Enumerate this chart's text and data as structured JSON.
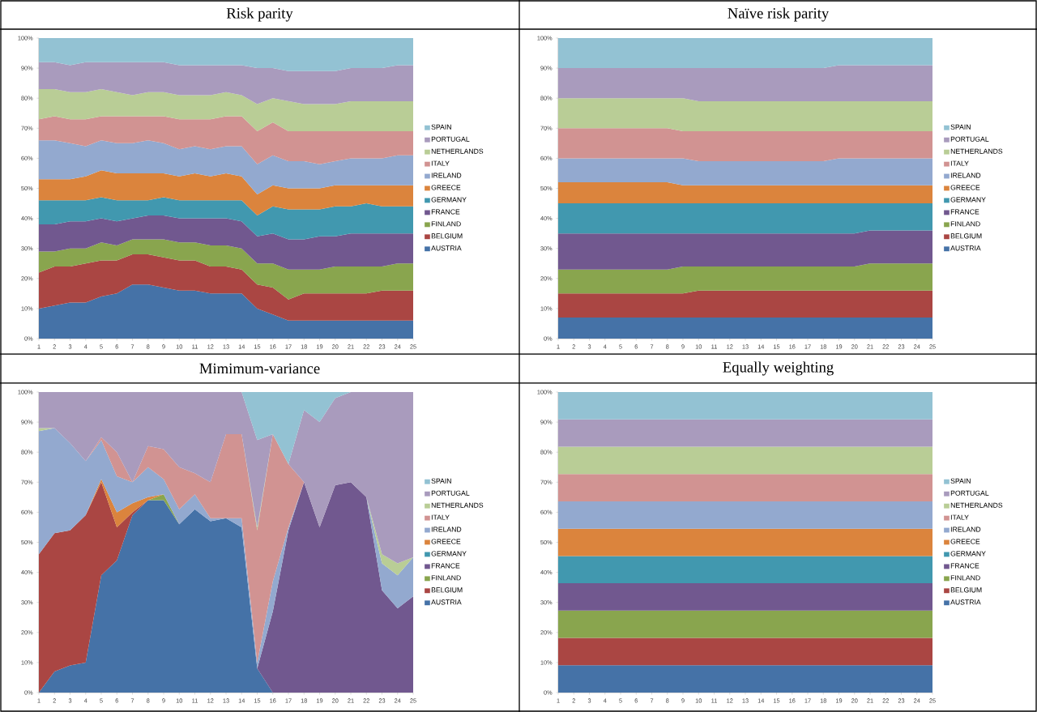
{
  "chart_data": [
    {
      "type": "area",
      "title": "Risk parity",
      "stacked": true,
      "legend": "right",
      "ylim": [
        0,
        100
      ],
      "yticks": [
        {
          "value": 0,
          "label": "0%"
        },
        {
          "value": 10,
          "label": "10%"
        },
        {
          "value": 20,
          "label": "20%"
        },
        {
          "value": 30,
          "label": "30%"
        },
        {
          "value": 40,
          "label": "40%"
        },
        {
          "value": 50,
          "label": "50%"
        },
        {
          "value": 60,
          "label": "60%"
        },
        {
          "value": 70,
          "label": "70%"
        },
        {
          "value": 80,
          "label": "80%"
        },
        {
          "value": 90,
          "label": "90%"
        },
        {
          "value": 100,
          "label": "100%"
        }
      ],
      "categories": [
        "1",
        "2",
        "3",
        "4",
        "5",
        "6",
        "7",
        "8",
        "9",
        "10",
        "11",
        "12",
        "13",
        "14",
        "15",
        "16",
        "17",
        "18",
        "19",
        "20",
        "21",
        "22",
        "23",
        "24",
        "25"
      ],
      "series": [
        {
          "name": "AUSTRIA",
          "color": "#4572a7",
          "values": [
            10,
            11,
            12,
            12,
            14,
            15,
            18,
            18,
            17,
            16,
            16,
            15,
            15,
            15,
            10,
            8,
            6,
            6,
            6,
            6,
            6,
            6,
            6,
            6,
            6
          ]
        },
        {
          "name": "BELGIUM",
          "color": "#aa4643",
          "values": [
            12,
            13,
            12,
            13,
            12,
            11,
            10,
            10,
            10,
            10,
            10,
            9,
            9,
            8,
            8,
            9,
            7,
            9,
            9,
            9,
            9,
            9,
            10,
            10,
            10
          ]
        },
        {
          "name": "FINLAND",
          "color": "#89a54e",
          "values": [
            7,
            5,
            6,
            5,
            6,
            5,
            5,
            5,
            6,
            6,
            6,
            7,
            7,
            7,
            7,
            8,
            10,
            8,
            8,
            9,
            9,
            9,
            8,
            9,
            9
          ]
        },
        {
          "name": "FRANCE",
          "color": "#71588f",
          "values": [
            9,
            9,
            9,
            9,
            8,
            8,
            7,
            8,
            8,
            8,
            8,
            9,
            9,
            9,
            9,
            10,
            10,
            10,
            11,
            10,
            11,
            11,
            11,
            10,
            10
          ]
        },
        {
          "name": "GERMANY",
          "color": "#4198af",
          "values": [
            8,
            8,
            7,
            7,
            7,
            7,
            6,
            5,
            6,
            6,
            6,
            6,
            6,
            7,
            7,
            9,
            10,
            10,
            9,
            10,
            9,
            10,
            9,
            9,
            9
          ]
        },
        {
          "name": "GREECE",
          "color": "#db843d",
          "values": [
            7,
            7,
            7,
            8,
            9,
            9,
            9,
            9,
            8,
            8,
            9,
            8,
            9,
            8,
            7,
            7,
            7,
            7,
            7,
            7,
            7,
            6,
            7,
            7,
            7
          ]
        },
        {
          "name": "IRELAND",
          "color": "#93a9cf",
          "values": [
            13,
            13,
            12,
            10,
            10,
            10,
            10,
            11,
            10,
            9,
            9,
            9,
            9,
            10,
            10,
            10,
            9,
            9,
            8,
            8,
            9,
            9,
            9,
            10,
            10
          ]
        },
        {
          "name": "ITALY",
          "color": "#d19392",
          "values": [
            7,
            8,
            8,
            9,
            8,
            9,
            9,
            8,
            9,
            10,
            9,
            10,
            10,
            10,
            11,
            11,
            10,
            10,
            11,
            10,
            9,
            9,
            9,
            8,
            8
          ]
        },
        {
          "name": "NETHERLANDS",
          "color": "#b9cd96",
          "values": [
            10,
            9,
            9,
            9,
            9,
            8,
            7,
            8,
            8,
            8,
            8,
            8,
            8,
            7,
            9,
            8,
            10,
            9,
            9,
            9,
            10,
            10,
            10,
            10,
            10
          ]
        },
        {
          "name": "PORTUGAL",
          "color": "#a99bbd",
          "values": [
            9,
            9,
            9,
            10,
            9,
            10,
            11,
            10,
            10,
            10,
            10,
            10,
            9,
            10,
            12,
            10,
            10,
            11,
            11,
            11,
            11,
            11,
            11,
            12,
            12
          ]
        },
        {
          "name": "SPAIN",
          "color": "#93c2d3",
          "values": [
            8,
            8,
            9,
            8,
            8,
            8,
            8,
            8,
            8,
            9,
            9,
            9,
            9,
            9,
            10,
            10,
            11,
            11,
            11,
            11,
            10,
            10,
            10,
            9,
            9
          ]
        }
      ]
    },
    {
      "type": "area",
      "title": "Naïve risk parity",
      "stacked": true,
      "legend": "right",
      "ylim": [
        0,
        100
      ],
      "yticks": [
        {
          "value": 0,
          "label": "0%"
        },
        {
          "value": 10,
          "label": "10%"
        },
        {
          "value": 20,
          "label": "20%"
        },
        {
          "value": 30,
          "label": "30%"
        },
        {
          "value": 40,
          "label": "40%"
        },
        {
          "value": 50,
          "label": "50%"
        },
        {
          "value": 60,
          "label": "60%"
        },
        {
          "value": 70,
          "label": "70%"
        },
        {
          "value": 80,
          "label": "80%"
        },
        {
          "value": 90,
          "label": "90%"
        },
        {
          "value": 100,
          "label": "100%"
        }
      ],
      "categories": [
        "1",
        "2",
        "3",
        "4",
        "5",
        "6",
        "7",
        "8",
        "9",
        "10",
        "11",
        "12",
        "13",
        "14",
        "15",
        "16",
        "17",
        "18",
        "19",
        "20",
        "21",
        "22",
        "23",
        "24",
        "25"
      ],
      "series": [
        {
          "name": "AUSTRIA",
          "color": "#4572a7",
          "values": [
            7,
            7,
            7,
            7,
            7,
            7,
            7,
            7,
            7,
            7,
            7,
            7,
            7,
            7,
            7,
            7,
            7,
            7,
            7,
            7,
            7,
            7,
            7,
            7,
            7
          ]
        },
        {
          "name": "BELGIUM",
          "color": "#aa4643",
          "values": [
            8,
            8,
            8,
            8,
            8,
            8,
            8,
            8,
            8,
            9,
            9,
            9,
            9,
            9,
            9,
            9,
            9,
            9,
            9,
            9,
            9,
            9,
            9,
            9,
            9
          ]
        },
        {
          "name": "FINLAND",
          "color": "#89a54e",
          "values": [
            8,
            8,
            8,
            8,
            8,
            8,
            8,
            8,
            9,
            8,
            8,
            8,
            8,
            8,
            8,
            8,
            8,
            8,
            8,
            8,
            9,
            9,
            9,
            9,
            9
          ]
        },
        {
          "name": "FRANCE",
          "color": "#71588f",
          "values": [
            12,
            12,
            12,
            12,
            12,
            12,
            12,
            12,
            11,
            11,
            11,
            11,
            11,
            11,
            11,
            11,
            11,
            11,
            11,
            11,
            11,
            11,
            11,
            11,
            11
          ]
        },
        {
          "name": "GERMANY",
          "color": "#4198af",
          "values": [
            10,
            10,
            10,
            10,
            10,
            10,
            10,
            10,
            10,
            10,
            10,
            10,
            10,
            10,
            10,
            10,
            10,
            10,
            10,
            10,
            9,
            9,
            9,
            9,
            9
          ]
        },
        {
          "name": "GREECE",
          "color": "#db843d",
          "values": [
            7,
            7,
            7,
            7,
            7,
            7,
            7,
            7,
            6,
            6,
            6,
            6,
            6,
            6,
            6,
            6,
            6,
            6,
            6,
            6,
            6,
            6,
            6,
            6,
            6
          ]
        },
        {
          "name": "IRELAND",
          "color": "#93a9cf",
          "values": [
            8,
            8,
            8,
            8,
            8,
            8,
            8,
            8,
            9,
            8,
            8,
            8,
            8,
            8,
            8,
            8,
            8,
            8,
            9,
            9,
            9,
            9,
            9,
            9,
            9
          ]
        },
        {
          "name": "ITALY",
          "color": "#d19392",
          "values": [
            10,
            10,
            10,
            10,
            10,
            10,
            10,
            10,
            9,
            10,
            10,
            10,
            10,
            10,
            10,
            10,
            10,
            10,
            9,
            9,
            9,
            9,
            9,
            9,
            9
          ]
        },
        {
          "name": "NETHERLANDS",
          "color": "#b9cd96",
          "values": [
            10,
            10,
            10,
            10,
            10,
            10,
            10,
            10,
            11,
            10,
            10,
            10,
            10,
            10,
            10,
            10,
            10,
            10,
            10,
            10,
            10,
            10,
            10,
            10,
            10
          ]
        },
        {
          "name": "PORTUGAL",
          "color": "#a99bbd",
          "values": [
            10,
            10,
            10,
            10,
            10,
            10,
            10,
            10,
            10,
            11,
            11,
            11,
            11,
            11,
            11,
            11,
            11,
            11,
            12,
            12,
            12,
            12,
            12,
            12,
            12
          ]
        },
        {
          "name": "SPAIN",
          "color": "#93c2d3",
          "values": [
            10,
            10,
            10,
            10,
            10,
            10,
            10,
            10,
            10,
            10,
            10,
            10,
            10,
            10,
            10,
            10,
            10,
            10,
            9,
            9,
            9,
            9,
            9,
            9,
            9
          ]
        }
      ]
    },
    {
      "type": "area",
      "title": "Mimimum-variance",
      "stacked": true,
      "legend": "right",
      "ylim": [
        0,
        100
      ],
      "yticks": [
        {
          "value": 0,
          "label": "0%"
        },
        {
          "value": 10,
          "label": "10%"
        },
        {
          "value": 20,
          "label": "20%"
        },
        {
          "value": 30,
          "label": "30%"
        },
        {
          "value": 40,
          "label": "40%"
        },
        {
          "value": 50,
          "label": "50%"
        },
        {
          "value": 60,
          "label": "60%"
        },
        {
          "value": 70,
          "label": "70%"
        },
        {
          "value": 80,
          "label": "80%"
        },
        {
          "value": 90,
          "label": "90%"
        },
        {
          "value": 100,
          "label": "100%"
        }
      ],
      "categories": [
        "1",
        "2",
        "3",
        "4",
        "5",
        "6",
        "7",
        "8",
        "9",
        "10",
        "11",
        "12",
        "13",
        "14",
        "15",
        "16",
        "17",
        "18",
        "19",
        "20",
        "21",
        "22",
        "23",
        "24",
        "25"
      ],
      "series": [
        {
          "name": "AUSTRIA",
          "color": "#4572a7",
          "values": [
            0,
            7,
            9,
            10,
            39,
            44,
            59,
            64,
            64,
            56,
            61,
            57,
            58,
            55,
            8,
            0,
            null,
            null,
            null,
            null,
            null,
            null,
            null,
            null,
            null
          ]
        },
        {
          "name": "BELGIUM",
          "color": "#aa4643",
          "values": [
            46,
            46,
            45,
            49,
            31,
            11,
            1,
            0,
            null,
            null,
            null,
            null,
            null,
            null,
            null,
            null,
            null,
            null,
            null,
            null,
            null,
            null,
            null,
            null,
            null
          ]
        },
        {
          "name": "FINLAND",
          "color": "#89a54e",
          "values": [
            null,
            null,
            null,
            null,
            null,
            null,
            null,
            0,
            2,
            0,
            null,
            null,
            null,
            null,
            null,
            null,
            null,
            null,
            null,
            null,
            null,
            null,
            null,
            null,
            null
          ]
        },
        {
          "name": "FRANCE",
          "color": "#71588f",
          "values": [
            null,
            null,
            null,
            null,
            null,
            null,
            null,
            null,
            null,
            null,
            null,
            null,
            null,
            null,
            0,
            27,
            54,
            70,
            55,
            69,
            70,
            65,
            34,
            28,
            32
          ]
        },
        {
          "name": "GERMANY",
          "color": "#4198af",
          "values": [
            null,
            null,
            null,
            null,
            null,
            null,
            null,
            null,
            null,
            null,
            null,
            null,
            null,
            null,
            null,
            null,
            null,
            null,
            null,
            null,
            null,
            null,
            null,
            null,
            null
          ]
        },
        {
          "name": "GREECE",
          "color": "#db843d",
          "values": [
            null,
            null,
            null,
            0,
            1,
            5,
            3,
            1,
            0,
            null,
            null,
            null,
            null,
            null,
            null,
            null,
            null,
            null,
            null,
            null,
            null,
            null,
            null,
            null,
            null
          ]
        },
        {
          "name": "IRELAND",
          "color": "#93a9cf",
          "values": [
            41,
            35,
            29,
            18,
            13,
            12,
            7,
            10,
            5,
            5,
            5,
            1,
            0,
            3,
            2,
            10,
            1,
            0,
            null,
            null,
            null,
            0,
            9,
            11,
            13
          ]
        },
        {
          "name": "ITALY",
          "color": "#d19392",
          "values": [
            null,
            null,
            null,
            0,
            1,
            8,
            0,
            7,
            10,
            14,
            7,
            12,
            28,
            28,
            44,
            49,
            21,
            0,
            null,
            null,
            null,
            null,
            null,
            null,
            null
          ]
        },
        {
          "name": "NETHERLANDS",
          "color": "#b9cd96",
          "values": [
            1,
            0,
            null,
            null,
            null,
            null,
            null,
            null,
            null,
            null,
            null,
            null,
            null,
            0,
            1,
            0,
            null,
            null,
            null,
            null,
            null,
            0,
            3,
            4,
            0
          ]
        },
        {
          "name": "PORTUGAL",
          "color": "#a99bbd",
          "values": [
            12,
            12,
            17,
            23,
            15,
            20,
            30,
            18,
            19,
            25,
            27,
            30,
            14,
            14,
            29,
            0,
            0,
            24,
            35,
            29,
            30,
            35,
            54,
            57,
            55
          ]
        },
        {
          "name": "SPAIN",
          "color": "#93c2d3",
          "values": [
            null,
            null,
            null,
            null,
            null,
            null,
            null,
            null,
            null,
            null,
            null,
            null,
            null,
            0,
            16,
            14,
            24,
            6,
            10,
            2,
            0,
            null,
            null,
            null,
            null
          ]
        }
      ]
    },
    {
      "type": "area",
      "title": "Equally weighting",
      "stacked": true,
      "legend": "right",
      "ylim": [
        0,
        100
      ],
      "yticks": [
        {
          "value": 0,
          "label": "0%"
        },
        {
          "value": 10,
          "label": "10%"
        },
        {
          "value": 20,
          "label": "20%"
        },
        {
          "value": 30,
          "label": "30%"
        },
        {
          "value": 40,
          "label": "40%"
        },
        {
          "value": 50,
          "label": "50%"
        },
        {
          "value": 60,
          "label": "60%"
        },
        {
          "value": 70,
          "label": "70%"
        },
        {
          "value": 80,
          "label": "80%"
        },
        {
          "value": 90,
          "label": "90%"
        },
        {
          "value": 100,
          "label": "100%"
        }
      ],
      "categories": [
        "1",
        "2",
        "3",
        "4",
        "5",
        "6",
        "7",
        "8",
        "9",
        "10",
        "11",
        "12",
        "13",
        "14",
        "15",
        "16",
        "17",
        "18",
        "19",
        "20",
        "21",
        "22",
        "23",
        "24",
        "25"
      ],
      "series": [
        {
          "name": "AUSTRIA",
          "color": "#4572a7",
          "values": [
            9.09,
            9.09,
            9.09,
            9.09,
            9.09,
            9.09,
            9.09,
            9.09,
            9.09,
            9.09,
            9.09,
            9.09,
            9.09,
            9.09,
            9.09,
            9.09,
            9.09,
            9.09,
            9.09,
            9.09,
            9.09,
            9.09,
            9.09,
            9.09,
            9.09
          ]
        },
        {
          "name": "BELGIUM",
          "color": "#aa4643",
          "values": [
            9.09,
            9.09,
            9.09,
            9.09,
            9.09,
            9.09,
            9.09,
            9.09,
            9.09,
            9.09,
            9.09,
            9.09,
            9.09,
            9.09,
            9.09,
            9.09,
            9.09,
            9.09,
            9.09,
            9.09,
            9.09,
            9.09,
            9.09,
            9.09,
            9.09
          ]
        },
        {
          "name": "FINLAND",
          "color": "#89a54e",
          "values": [
            9.09,
            9.09,
            9.09,
            9.09,
            9.09,
            9.09,
            9.09,
            9.09,
            9.09,
            9.09,
            9.09,
            9.09,
            9.09,
            9.09,
            9.09,
            9.09,
            9.09,
            9.09,
            9.09,
            9.09,
            9.09,
            9.09,
            9.09,
            9.09,
            9.09
          ]
        },
        {
          "name": "FRANCE",
          "color": "#71588f",
          "values": [
            9.09,
            9.09,
            9.09,
            9.09,
            9.09,
            9.09,
            9.09,
            9.09,
            9.09,
            9.09,
            9.09,
            9.09,
            9.09,
            9.09,
            9.09,
            9.09,
            9.09,
            9.09,
            9.09,
            9.09,
            9.09,
            9.09,
            9.09,
            9.09,
            9.09
          ]
        },
        {
          "name": "GERMANY",
          "color": "#4198af",
          "values": [
            9.09,
            9.09,
            9.09,
            9.09,
            9.09,
            9.09,
            9.09,
            9.09,
            9.09,
            9.09,
            9.09,
            9.09,
            9.09,
            9.09,
            9.09,
            9.09,
            9.09,
            9.09,
            9.09,
            9.09,
            9.09,
            9.09,
            9.09,
            9.09,
            9.09
          ]
        },
        {
          "name": "GREECE",
          "color": "#db843d",
          "values": [
            9.09,
            9.09,
            9.09,
            9.09,
            9.09,
            9.09,
            9.09,
            9.09,
            9.09,
            9.09,
            9.09,
            9.09,
            9.09,
            9.09,
            9.09,
            9.09,
            9.09,
            9.09,
            9.09,
            9.09,
            9.09,
            9.09,
            9.09,
            9.09,
            9.09
          ]
        },
        {
          "name": "IRELAND",
          "color": "#93a9cf",
          "values": [
            9.09,
            9.09,
            9.09,
            9.09,
            9.09,
            9.09,
            9.09,
            9.09,
            9.09,
            9.09,
            9.09,
            9.09,
            9.09,
            9.09,
            9.09,
            9.09,
            9.09,
            9.09,
            9.09,
            9.09,
            9.09,
            9.09,
            9.09,
            9.09,
            9.09
          ]
        },
        {
          "name": "ITALY",
          "color": "#d19392",
          "values": [
            9.09,
            9.09,
            9.09,
            9.09,
            9.09,
            9.09,
            9.09,
            9.09,
            9.09,
            9.09,
            9.09,
            9.09,
            9.09,
            9.09,
            9.09,
            9.09,
            9.09,
            9.09,
            9.09,
            9.09,
            9.09,
            9.09,
            9.09,
            9.09,
            9.09
          ]
        },
        {
          "name": "NETHERLANDS",
          "color": "#b9cd96",
          "values": [
            9.09,
            9.09,
            9.09,
            9.09,
            9.09,
            9.09,
            9.09,
            9.09,
            9.09,
            9.09,
            9.09,
            9.09,
            9.09,
            9.09,
            9.09,
            9.09,
            9.09,
            9.09,
            9.09,
            9.09,
            9.09,
            9.09,
            9.09,
            9.09,
            9.09
          ]
        },
        {
          "name": "PORTUGAL",
          "color": "#a99bbd",
          "values": [
            9.09,
            9.09,
            9.09,
            9.09,
            9.09,
            9.09,
            9.09,
            9.09,
            9.09,
            9.09,
            9.09,
            9.09,
            9.09,
            9.09,
            9.09,
            9.09,
            9.09,
            9.09,
            9.09,
            9.09,
            9.09,
            9.09,
            9.09,
            9.09,
            9.09
          ]
        },
        {
          "name": "SPAIN",
          "color": "#93c2d3",
          "values": [
            9.09,
            9.09,
            9.09,
            9.09,
            9.09,
            9.09,
            9.09,
            9.09,
            9.09,
            9.09,
            9.09,
            9.09,
            9.09,
            9.09,
            9.09,
            9.09,
            9.09,
            9.09,
            9.09,
            9.09,
            9.09,
            9.09,
            9.09,
            9.09,
            9.09
          ]
        }
      ]
    }
  ]
}
